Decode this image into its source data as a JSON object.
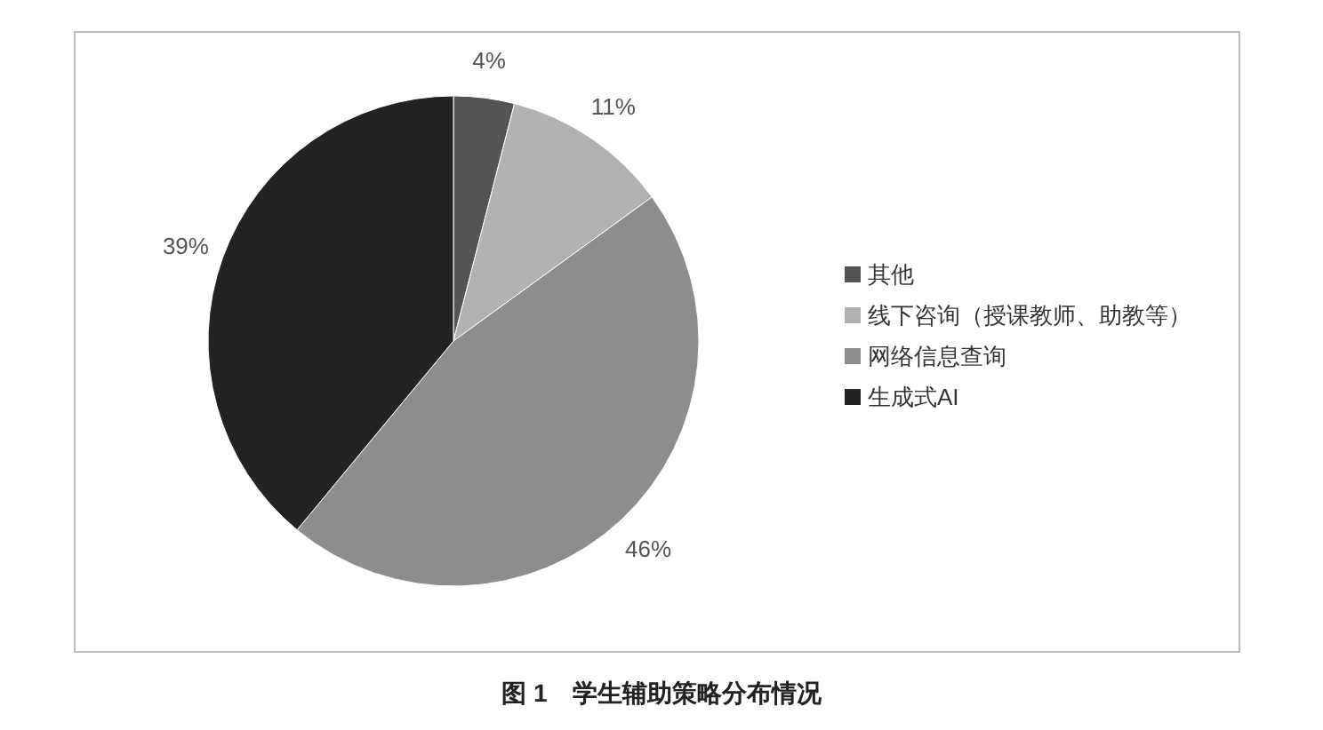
{
  "chart_data": {
    "type": "pie",
    "title": "图 1　学生辅助策略分布情况",
    "categories": [
      "其他",
      "线下咨询（授课教师、助教等）",
      "网络信息查询",
      "生成式AI"
    ],
    "values": [
      4,
      11,
      46,
      39
    ],
    "value_labels": [
      "4%",
      "11%",
      "46%",
      "39%"
    ],
    "colors": [
      "#545454",
      "#b1b1b1",
      "#8d8d8d",
      "#232323"
    ],
    "legend": "right"
  }
}
